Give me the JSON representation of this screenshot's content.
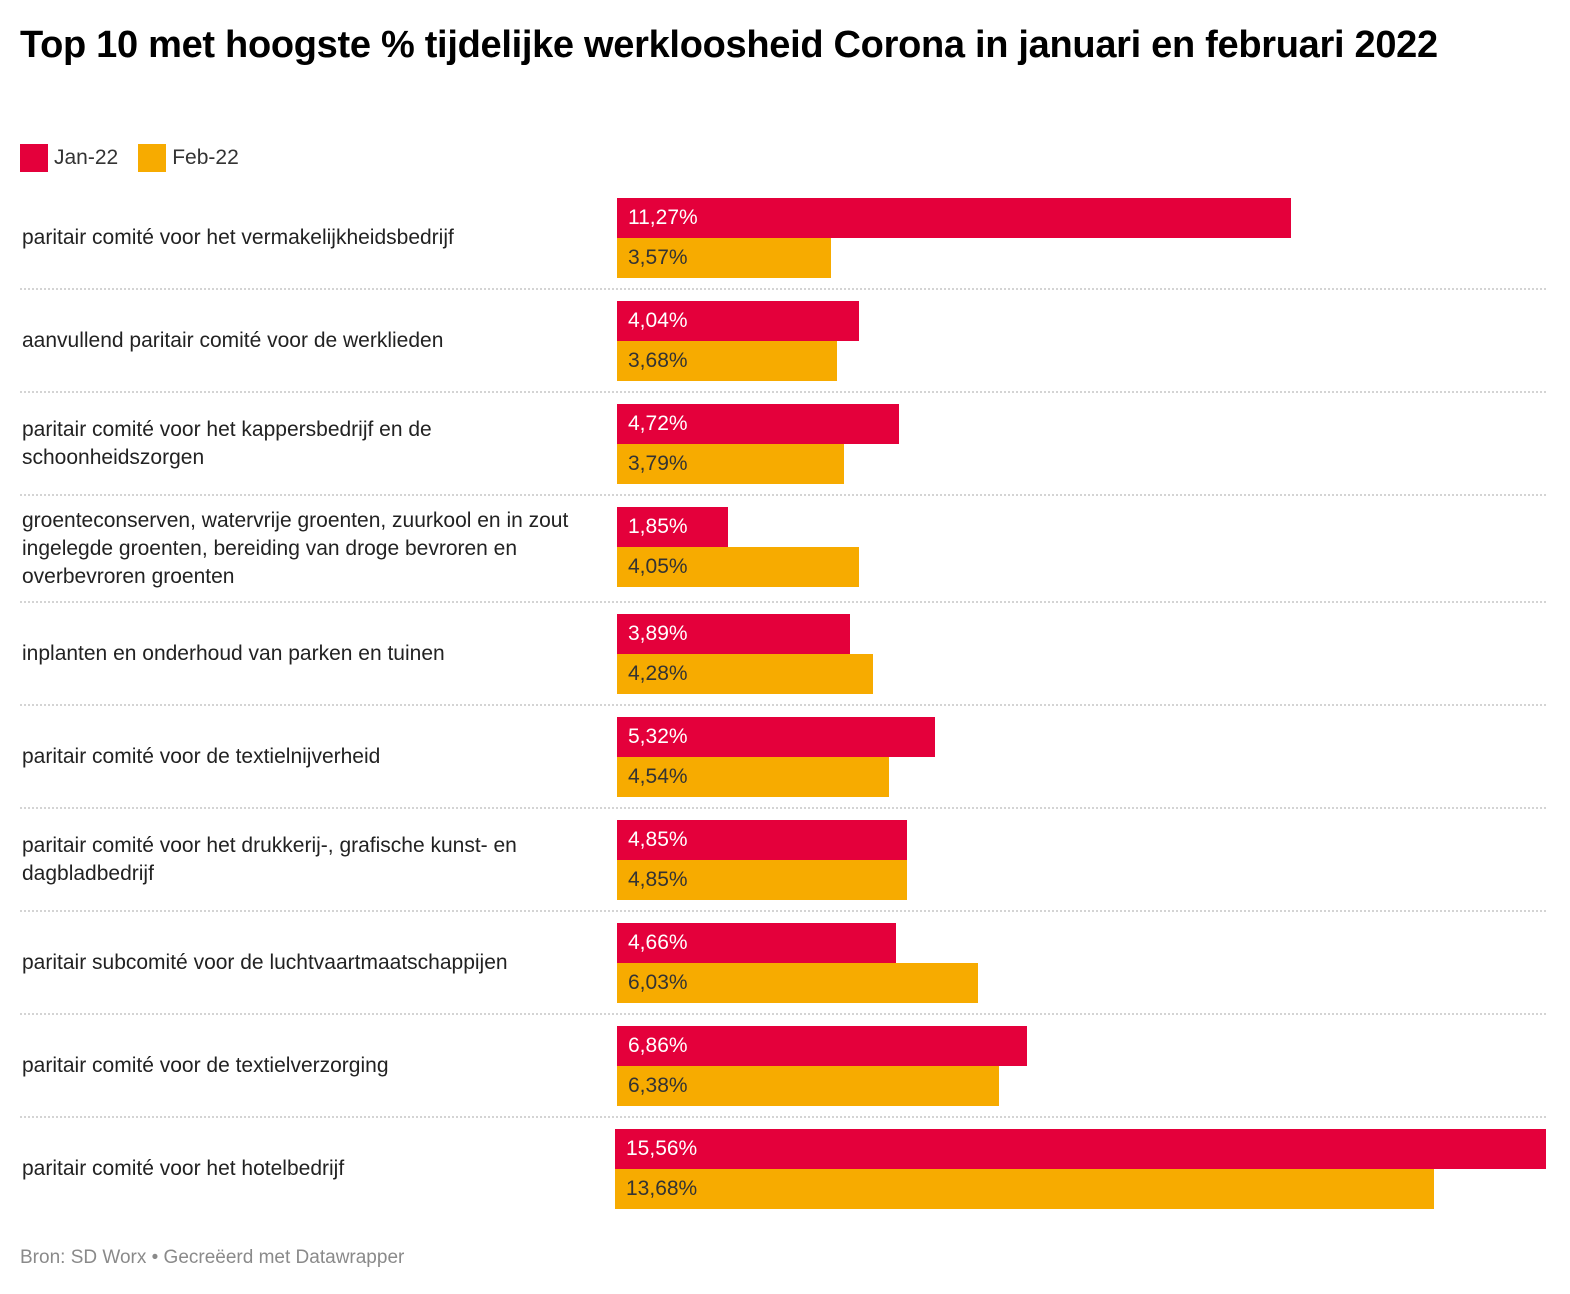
{
  "title": "Top 10 met hoogste % tijdelijke werkloosheid Corona in januari en februari 2022",
  "footer": "Bron: SD Worx • Gecreëerd met Datawrapper",
  "colors": {
    "jan": "#e4003b",
    "feb": "#f7ab00"
  },
  "chart_data": {
    "type": "bar",
    "orientation": "horizontal-grouped",
    "title": "Top 10 met hoogste % tijdelijke werkloosheid Corona in januari en februari 2022",
    "legend": [
      "Jan-22",
      "Feb-22"
    ],
    "legend_position": "top-left",
    "xlim": [
      0,
      15.56
    ],
    "categories": [
      "paritair comité voor het vermakelijkheidsbedrijf",
      "aanvullend paritair comité voor de werklieden",
      "paritair comité voor het kappersbedrijf en de schoonheidszorgen",
      "groenteconserven, watervrije groenten, zuurkool en in zout ingelegde groenten, bereiding van droge bevroren en overbevroren groenten",
      "inplanten en onderhoud van parken en tuinen",
      "paritair comité voor de textielnijverheid",
      "paritair comité voor het drukkerij-, grafische kunst- en dagbladbedrijf",
      "paritair subcomité voor de luchtvaartmaatschappijen",
      "paritair comité voor de textielverzorging",
      "paritair comité voor het hotelbedrijf"
    ],
    "series": [
      {
        "name": "Jan-22",
        "values": [
          11.27,
          4.04,
          4.72,
          1.85,
          3.89,
          5.32,
          4.85,
          4.66,
          6.86,
          15.56
        ],
        "labels": [
          "11,27%",
          "4,04%",
          "4,72%",
          "1,85%",
          "3,89%",
          "5,32%",
          "4,85%",
          "4,66%",
          "6,86%",
          "15,56%"
        ]
      },
      {
        "name": "Feb-22",
        "values": [
          3.57,
          3.68,
          3.79,
          4.05,
          4.28,
          4.54,
          4.85,
          6.03,
          6.38,
          13.68
        ],
        "labels": [
          "3,57%",
          "3,68%",
          "3,79%",
          "4,05%",
          "4,28%",
          "4,54%",
          "4,85%",
          "6,03%",
          "6,38%",
          "13,68%"
        ]
      }
    ]
  }
}
